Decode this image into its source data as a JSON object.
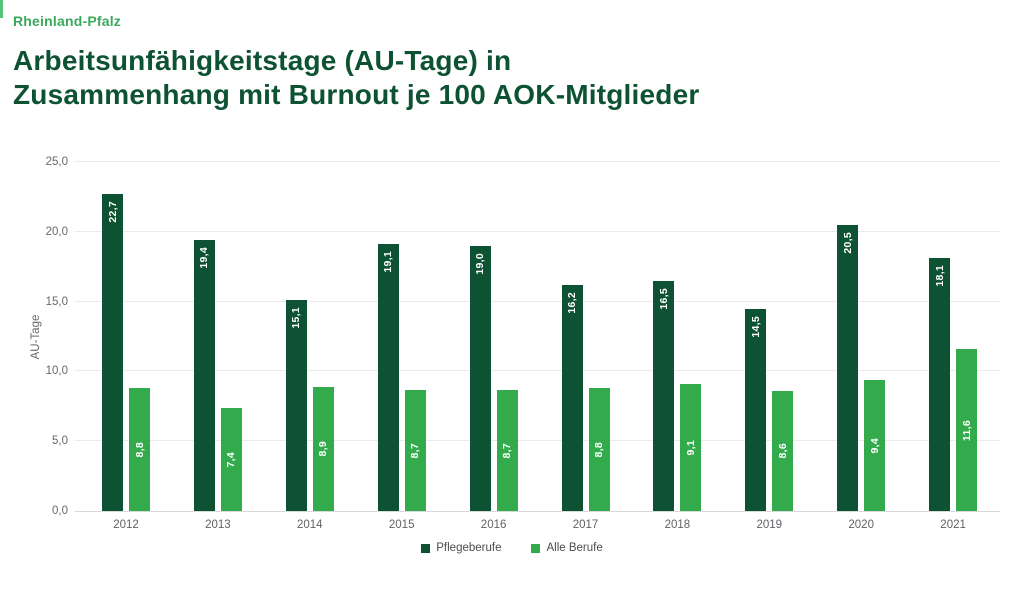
{
  "header": {
    "region": "Rheinland-Pfalz",
    "title_line1": "Arbeitsunfähigkeitstage (AU-Tage) in",
    "title_line2": "Zusammenhang mit Burnout je 100 AOK-Mitglieder"
  },
  "colors": {
    "region_green": "#3aa95b",
    "title_green": "#0d5232",
    "edge_accent_green": "#58c279",
    "dark_series_green": "#0d5232",
    "light_series_green": "#33ab4d",
    "axis_text_gray": "#66686c",
    "gridline_gray": "#e9eaeb"
  },
  "chart_data": {
    "type": "bar",
    "title": "Arbeitsunfähigkeitstage (AU-Tage) in Zusammenhang mit Burnout je 100 AOK-Mitglieder",
    "subtitle": "Rheinland-Pfalz",
    "categories": [
      "2012",
      "2013",
      "2014",
      "2015",
      "2016",
      "2017",
      "2018",
      "2019",
      "2020",
      "2021"
    ],
    "series": [
      {
        "name": "Pflegeberufe",
        "color": "#0d5232",
        "values": [
          22.7,
          19.4,
          15.1,
          19.1,
          19.0,
          16.2,
          16.5,
          14.5,
          20.5,
          18.1
        ],
        "labels": [
          "22,7",
          "19,4",
          "15,1",
          "19,1",
          "19,0",
          "16,2",
          "16,5",
          "14,5",
          "20,5",
          "18,1"
        ]
      },
      {
        "name": "Alle Berufe",
        "color": "#33ab4d",
        "values": [
          8.8,
          7.4,
          8.9,
          8.7,
          8.7,
          8.8,
          9.1,
          8.6,
          9.4,
          11.6
        ],
        "labels": [
          "8,8",
          "7,4",
          "8,9",
          "8,7",
          "8,7",
          "8,8",
          "9,1",
          "8,6",
          "9,4",
          "11,6"
        ]
      }
    ],
    "xlabel": "",
    "ylabel": "AU-Tage",
    "ylim": [
      0,
      25
    ],
    "yticks": [
      0,
      5,
      10,
      15,
      20,
      25
    ],
    "ytick_labels": [
      "0,0",
      "5,0",
      "10,0",
      "15,0",
      "20,0",
      "25,0"
    ],
    "grid": "horizontal",
    "legend_position": "bottom",
    "value_labels": "inside-vertical"
  }
}
